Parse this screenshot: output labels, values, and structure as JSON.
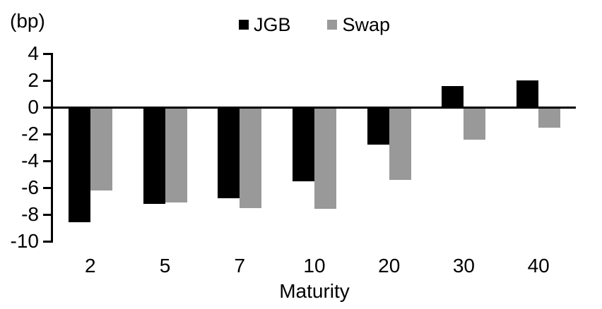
{
  "chart_data": {
    "type": "bar",
    "unit_label": "(bp)",
    "xlabel": "Maturity",
    "categories": [
      "2",
      "5",
      "7",
      "10",
      "20",
      "30",
      "40"
    ],
    "series": [
      {
        "name": "JGB",
        "color": "#000000",
        "values": [
          -8.6,
          -7.2,
          -6.8,
          -5.5,
          -2.8,
          1.6,
          2.0
        ]
      },
      {
        "name": "Swap",
        "color": "#999999",
        "values": [
          -6.2,
          -7.1,
          -7.5,
          -7.6,
          -5.4,
          -2.4,
          -1.5
        ]
      }
    ],
    "ylim": [
      -10,
      4
    ],
    "yticks": [
      4,
      2,
      0,
      -2,
      -4,
      -6,
      -8,
      -10
    ],
    "ytick_step": 2,
    "legend_position": "top-center",
    "grid": false,
    "zero_baseline": true,
    "background_color": "#ffffff",
    "axis_color": "#000000"
  }
}
